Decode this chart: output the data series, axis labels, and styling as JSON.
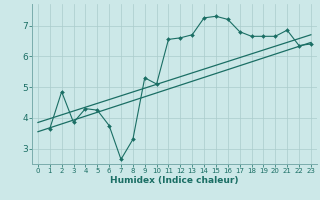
{
  "xlabel": "Humidex (Indice chaleur)",
  "bg_color": "#cce8e8",
  "grid_color": "#aacccc",
  "line_color": "#1a6e64",
  "xlim": [
    -0.5,
    23.5
  ],
  "ylim": [
    2.5,
    7.7
  ],
  "xticks": [
    0,
    1,
    2,
    3,
    4,
    5,
    6,
    7,
    8,
    9,
    10,
    11,
    12,
    13,
    14,
    15,
    16,
    17,
    18,
    19,
    20,
    21,
    22,
    23
  ],
  "yticks": [
    3,
    4,
    5,
    6,
    7
  ],
  "data_line": {
    "x": [
      1,
      2,
      3,
      4,
      5,
      6,
      7,
      8,
      9,
      10,
      11,
      12,
      13,
      14,
      15,
      16,
      17,
      18,
      19,
      20,
      21,
      22,
      23
    ],
    "y": [
      3.65,
      4.85,
      3.85,
      4.3,
      4.25,
      3.75,
      2.65,
      3.3,
      5.3,
      5.1,
      6.55,
      6.6,
      6.7,
      7.25,
      7.3,
      7.2,
      6.8,
      6.65,
      6.65,
      6.65,
      6.85,
      6.35,
      6.4
    ]
  },
  "reg_line1": {
    "x": [
      0,
      23
    ],
    "y": [
      3.55,
      6.45
    ]
  },
  "reg_line2": {
    "x": [
      0,
      23
    ],
    "y": [
      3.85,
      6.7
    ]
  }
}
